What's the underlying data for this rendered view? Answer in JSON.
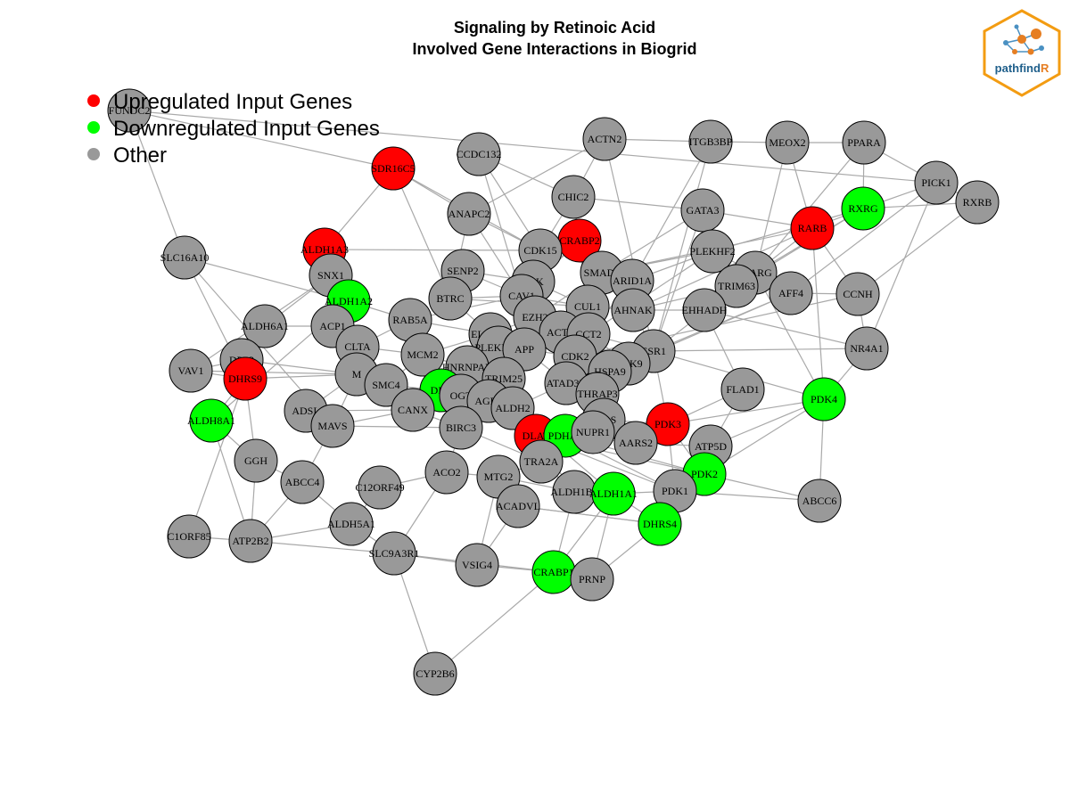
{
  "title": {
    "line1": "Signaling by Retinoic Acid",
    "line2": "Involved Gene Interactions in Biogrid"
  },
  "legend": [
    {
      "label": "Upregulated Input Genes",
      "color": "#ff0000"
    },
    {
      "label": "Downregulated Input Genes",
      "color": "#00ff00"
    },
    {
      "label": "Other",
      "color": "#999999"
    }
  ],
  "logo": {
    "text_main": "pathfind",
    "text_accent": "R",
    "border_color": "#f39c12",
    "accent_color": "#e67e22",
    "text_color": "#1f5f8b"
  },
  "colors": {
    "up": "#ff0000",
    "down": "#00ff00",
    "other": "#999999",
    "edge": "#a9a9a9"
  },
  "nodes": [
    {
      "id": "FUNDC2",
      "type": "other"
    },
    {
      "id": "SDR16C5",
      "type": "up"
    },
    {
      "id": "CCDC132",
      "type": "other"
    },
    {
      "id": "ACTN2",
      "type": "other"
    },
    {
      "id": "ITGB3BP",
      "type": "other"
    },
    {
      "id": "MEOX2",
      "type": "other"
    },
    {
      "id": "PPARA",
      "type": "other"
    },
    {
      "id": "PICK1",
      "type": "other"
    },
    {
      "id": "RXRB",
      "type": "other"
    },
    {
      "id": "RXRG",
      "type": "down"
    },
    {
      "id": "RARB",
      "type": "up"
    },
    {
      "id": "GATA3",
      "type": "other"
    },
    {
      "id": "CHIC2",
      "type": "other"
    },
    {
      "id": "ANAPC2",
      "type": "other"
    },
    {
      "id": "CRABP2",
      "type": "up"
    },
    {
      "id": "CDK15",
      "type": "other"
    },
    {
      "id": "ALDH1A3",
      "type": "up"
    },
    {
      "id": "SLC16A10",
      "type": "other"
    },
    {
      "id": "SNX1",
      "type": "other"
    },
    {
      "id": "SENP2",
      "type": "other"
    },
    {
      "id": "CSK",
      "type": "other"
    },
    {
      "id": "SMAD2",
      "type": "other"
    },
    {
      "id": "ARID1A",
      "type": "other"
    },
    {
      "id": "PLEKHF2",
      "type": "other"
    },
    {
      "id": "PPARG",
      "type": "other"
    },
    {
      "id": "TRIM63",
      "type": "other"
    },
    {
      "id": "AFF4",
      "type": "other"
    },
    {
      "id": "CCNH",
      "type": "other"
    },
    {
      "id": "ALDH1A2",
      "type": "down"
    },
    {
      "id": "BTRC",
      "type": "other"
    },
    {
      "id": "CAV1",
      "type": "other"
    },
    {
      "id": "CUL1",
      "type": "other"
    },
    {
      "id": "AHNAK",
      "type": "other"
    },
    {
      "id": "EHHADH",
      "type": "other"
    },
    {
      "id": "ALDH6A1",
      "type": "other"
    },
    {
      "id": "ACP1",
      "type": "other"
    },
    {
      "id": "RAB5A",
      "type": "other"
    },
    {
      "id": "EZH2",
      "type": "other"
    },
    {
      "id": "ELAVL1",
      "type": "other"
    },
    {
      "id": "ACTB",
      "type": "other"
    },
    {
      "id": "CCT2",
      "type": "other"
    },
    {
      "id": "NR4A1",
      "type": "other"
    },
    {
      "id": "CLTA",
      "type": "other"
    },
    {
      "id": "MCM2",
      "type": "other"
    },
    {
      "id": "PLEKHA4",
      "type": "other"
    },
    {
      "id": "APP",
      "type": "other"
    },
    {
      "id": "CDK2",
      "type": "other"
    },
    {
      "id": "ESR1",
      "type": "other"
    },
    {
      "id": "DPP3",
      "type": "other"
    },
    {
      "id": "VAV1",
      "type": "other"
    },
    {
      "id": "DHRS9",
      "type": "up"
    },
    {
      "id": "M",
      "type": "other"
    },
    {
      "id": "HNRNPAB",
      "type": "other"
    },
    {
      "id": "CDK9",
      "type": "other"
    },
    {
      "id": "HSPA9",
      "type": "other"
    },
    {
      "id": "SMC4",
      "type": "other"
    },
    {
      "id": "TRIM25",
      "type": "other"
    },
    {
      "id": "ATAD3B",
      "type": "other"
    },
    {
      "id": "FLAD1",
      "type": "other"
    },
    {
      "id": "PDK4",
      "type": "down"
    },
    {
      "id": "DLD",
      "type": "down"
    },
    {
      "id": "OGT",
      "type": "other"
    },
    {
      "id": "THRAP3",
      "type": "other"
    },
    {
      "id": "AGR3",
      "type": "other"
    },
    {
      "id": "ALDH2",
      "type": "other"
    },
    {
      "id": "ADSL",
      "type": "other"
    },
    {
      "id": "CANX",
      "type": "other"
    },
    {
      "id": "ALDH8A1",
      "type": "down"
    },
    {
      "id": "MAVS",
      "type": "other"
    },
    {
      "id": "EPRS",
      "type": "other"
    },
    {
      "id": "PDK3",
      "type": "up"
    },
    {
      "id": "BIRC3",
      "type": "other"
    },
    {
      "id": "DLAT",
      "type": "up"
    },
    {
      "id": "PDHA1",
      "type": "down"
    },
    {
      "id": "NUPR1",
      "type": "other"
    },
    {
      "id": "ATP5D",
      "type": "other"
    },
    {
      "id": "AARS2",
      "type": "other"
    },
    {
      "id": "GGH",
      "type": "other"
    },
    {
      "id": "TRA2A",
      "type": "other"
    },
    {
      "id": "PDK2",
      "type": "down"
    },
    {
      "id": "ACO2",
      "type": "other"
    },
    {
      "id": "ABCC4",
      "type": "other"
    },
    {
      "id": "MTG2",
      "type": "other"
    },
    {
      "id": "C12ORF49",
      "type": "other"
    },
    {
      "id": "ALDH1B1",
      "type": "other"
    },
    {
      "id": "ALDH1A1",
      "type": "down"
    },
    {
      "id": "PDK1",
      "type": "other"
    },
    {
      "id": "ABCC6",
      "type": "other"
    },
    {
      "id": "ACADVL",
      "type": "other"
    },
    {
      "id": "DHRS4",
      "type": "down"
    },
    {
      "id": "ALDH5A1",
      "type": "other"
    },
    {
      "id": "C1ORF85",
      "type": "other"
    },
    {
      "id": "ATP2B2",
      "type": "other"
    },
    {
      "id": "SLC9A3R1",
      "type": "other"
    },
    {
      "id": "VSIG4",
      "type": "other"
    },
    {
      "id": "CRABP1",
      "type": "down"
    },
    {
      "id": "PRNP",
      "type": "other"
    },
    {
      "id": "CYP2B6",
      "type": "other"
    }
  ],
  "edges": [
    [
      "FUNDC2",
      "SLC16A10"
    ],
    [
      "FUNDC2",
      "SDR16C5"
    ],
    [
      "FUNDC2",
      "PICK1"
    ],
    [
      "SDR16C5",
      "ALDH1A3"
    ],
    [
      "SDR16C5",
      "BTRC"
    ],
    [
      "SDR16C5",
      "CDK15"
    ],
    [
      "SDR16C5",
      "ANAPC2"
    ],
    [
      "CCDC132",
      "CHIC2"
    ],
    [
      "CCDC132",
      "CDK15"
    ],
    [
      "CCDC132",
      "CAV1"
    ],
    [
      "ACTN2",
      "ITGB3BP"
    ],
    [
      "ACTN2",
      "ESR1"
    ],
    [
      "ACTN2",
      "CHIC2"
    ],
    [
      "ACTN2",
      "ANAPC2"
    ],
    [
      "ITGB3BP",
      "MEOX2"
    ],
    [
      "ITGB3BP",
      "ARID1A"
    ],
    [
      "ITGB3BP",
      "ESR1"
    ],
    [
      "MEOX2",
      "PPARA"
    ],
    [
      "MEOX2",
      "RARB"
    ],
    [
      "MEOX2",
      "PPARG"
    ],
    [
      "PPARA",
      "PICK1"
    ],
    [
      "PPARA",
      "RXRG"
    ],
    [
      "PPARA",
      "PPARG"
    ],
    [
      "PICK1",
      "RXRB"
    ],
    [
      "PICK1",
      "RXRG"
    ],
    [
      "PICK1",
      "AFF4"
    ],
    [
      "PICK1",
      "NR4A1"
    ],
    [
      "RXRB",
      "RXRG"
    ],
    [
      "RXRB",
      "CCNH"
    ],
    [
      "RXRG",
      "RARB"
    ],
    [
      "RXRG",
      "PLEKHF2"
    ],
    [
      "RXRG",
      "PPARG"
    ],
    [
      "RXRG",
      "TRIM63"
    ],
    [
      "RARB",
      "GATA3"
    ],
    [
      "RARB",
      "CCNH"
    ],
    [
      "RARB",
      "PPARG"
    ],
    [
      "RARB",
      "SMAD2"
    ],
    [
      "RARB",
      "AHNAK"
    ],
    [
      "RARB",
      "PDK4"
    ],
    [
      "GATA3",
      "ESR1"
    ],
    [
      "GATA3",
      "SMAD2"
    ],
    [
      "GATA3",
      "CHIC2"
    ],
    [
      "CHIC2",
      "CDK15"
    ],
    [
      "CHIC2",
      "CUL1"
    ],
    [
      "ANAPC2",
      "BTRC"
    ],
    [
      "ANAPC2",
      "CDK15"
    ],
    [
      "ANAPC2",
      "CAV1"
    ],
    [
      "CRABP2",
      "CDK15"
    ],
    [
      "CRABP2",
      "CSK"
    ],
    [
      "CRABP2",
      "CUL1"
    ],
    [
      "CRABP2",
      "SMAD2"
    ],
    [
      "CRABP2",
      "CAV1"
    ],
    [
      "CDK15",
      "CAV1"
    ],
    [
      "CDK15",
      "CSK"
    ],
    [
      "ALDH1A3",
      "SNX1"
    ],
    [
      "ALDH1A3",
      "ALDH1A2"
    ],
    [
      "ALDH1A3",
      "CDK15"
    ],
    [
      "SLC16A10",
      "ALDH1A2"
    ],
    [
      "SLC16A10",
      "DHRS9"
    ],
    [
      "SLC16A10",
      "MAVS"
    ],
    [
      "SNX1",
      "ALDH6A1"
    ],
    [
      "SNX1",
      "ALDH1A2"
    ],
    [
      "SNX1",
      "VAV1"
    ],
    [
      "SENP2",
      "CSK"
    ],
    [
      "SENP2",
      "CAV1"
    ],
    [
      "SENP2",
      "BTRC"
    ],
    [
      "CSK",
      "CAV1"
    ],
    [
      "CSK",
      "EZH2"
    ],
    [
      "CSK",
      "CUL1"
    ],
    [
      "SMAD2",
      "ARID1A"
    ],
    [
      "SMAD2",
      "CUL1"
    ],
    [
      "SMAD2",
      "EZH2"
    ],
    [
      "SMAD2",
      "PLEKHF2"
    ],
    [
      "ARID1A",
      "AHNAK"
    ],
    [
      "ARID1A",
      "CCT2"
    ],
    [
      "ARID1A",
      "PLEKHF2"
    ],
    [
      "PLEKHF2",
      "PPARG"
    ],
    [
      "PLEKHF2",
      "TRIM63"
    ],
    [
      "PLEKHF2",
      "CCT2"
    ],
    [
      "PPARG",
      "TRIM63"
    ],
    [
      "PPARG",
      "EHHADH"
    ],
    [
      "PPARG",
      "ESR1"
    ],
    [
      "PPARG",
      "PDK4"
    ],
    [
      "TRIM63",
      "AHNAK"
    ],
    [
      "TRIM63",
      "EHHADH"
    ],
    [
      "AFF4",
      "CCNH"
    ],
    [
      "AFF4",
      "ESR1"
    ],
    [
      "AFF4",
      "CDK9"
    ],
    [
      "CCNH",
      "NR4A1"
    ],
    [
      "CCNH",
      "CDK2"
    ],
    [
      "ALDH1A2",
      "ACP1"
    ],
    [
      "ALDH1A2",
      "RAB5A"
    ],
    [
      "ALDH1A2",
      "CLTA"
    ],
    [
      "BTRC",
      "CAV1"
    ],
    [
      "BTRC",
      "CUL1"
    ],
    [
      "BTRC",
      "ELAVL1"
    ],
    [
      "CAV1",
      "CUL1"
    ],
    [
      "CAV1",
      "EZH2"
    ],
    [
      "CAV1",
      "APP"
    ],
    [
      "CAV1",
      "RAB5A"
    ],
    [
      "CUL1",
      "AHNAK"
    ],
    [
      "CUL1",
      "CCT2"
    ],
    [
      "CUL1",
      "APP"
    ],
    [
      "CUL1",
      "CDK2"
    ],
    [
      "AHNAK",
      "EHHADH"
    ],
    [
      "AHNAK",
      "ESR1"
    ],
    [
      "EHHADH",
      "FLAD1"
    ],
    [
      "EHHADH",
      "NR4A1"
    ],
    [
      "ALDH6A1",
      "ACP1"
    ],
    [
      "ALDH6A1",
      "DPP3"
    ],
    [
      "ACP1",
      "CLTA"
    ],
    [
      "ACP1",
      "M"
    ],
    [
      "RAB5A",
      "CLTA"
    ],
    [
      "RAB5A",
      "MCM2"
    ],
    [
      "RAB5A",
      "ELAVL1"
    ],
    [
      "EZH2",
      "ACTB"
    ],
    [
      "EZH2",
      "ELAVL1"
    ],
    [
      "EZH2",
      "CDK2"
    ],
    [
      "ELAVL1",
      "PLEKHA4"
    ],
    [
      "ELAVL1",
      "APP"
    ],
    [
      "ELAVL1",
      "MCM2"
    ],
    [
      "ELAVL1",
      "HNRNPAB"
    ],
    [
      "ACTB",
      "CCT2"
    ],
    [
      "ACTB",
      "APP"
    ],
    [
      "ACTB",
      "CDK2"
    ],
    [
      "ACTB",
      "HSPA9"
    ],
    [
      "CCT2",
      "CDK9"
    ],
    [
      "CCT2",
      "ESR1"
    ],
    [
      "NR4A1",
      "ESR1"
    ],
    [
      "NR4A1",
      "PDK4"
    ],
    [
      "CLTA",
      "MCM2"
    ],
    [
      "CLTA",
      "M"
    ],
    [
      "CLTA",
      "SMC4"
    ],
    [
      "MCM2",
      "HNRNPAB"
    ],
    [
      "MCM2",
      "SMC4"
    ],
    [
      "PLEKHA4",
      "APP"
    ],
    [
      "PLEKHA4",
      "TRIM25"
    ],
    [
      "APP",
      "CDK2"
    ],
    [
      "APP",
      "TRIM25"
    ],
    [
      "APP",
      "ATAD3B"
    ],
    [
      "CDK2",
      "CDK9"
    ],
    [
      "CDK2",
      "HSPA9"
    ],
    [
      "CDK2",
      "ATAD3B"
    ],
    [
      "ESR1",
      "CDK9"
    ],
    [
      "ESR1",
      "PDK3"
    ],
    [
      "ESR1",
      "PDK4"
    ],
    [
      "DPP3",
      "VAV1"
    ],
    [
      "DPP3",
      "DHRS9"
    ],
    [
      "DPP3",
      "M"
    ],
    [
      "VAV1",
      "DHRS9"
    ],
    [
      "VAV1",
      "M"
    ],
    [
      "DHRS9",
      "ALDH8A1"
    ],
    [
      "DHRS9",
      "M"
    ],
    [
      "DHRS9",
      "GGH"
    ],
    [
      "M",
      "SMC4"
    ],
    [
      "M",
      "ADSL"
    ],
    [
      "M",
      "MAVS"
    ],
    [
      "HNRNPAB",
      "TRIM25"
    ],
    [
      "HNRNPAB",
      "DLD"
    ],
    [
      "HNRNPAB",
      "OGT"
    ],
    [
      "CDK9",
      "HSPA9"
    ],
    [
      "CDK9",
      "THRAP3"
    ],
    [
      "HSPA9",
      "ATAD3B"
    ],
    [
      "HSPA9",
      "THRAP3"
    ],
    [
      "HSPA9",
      "EPRS"
    ],
    [
      "SMC4",
      "DLD"
    ],
    [
      "SMC4",
      "CANX"
    ],
    [
      "TRIM25",
      "OGT"
    ],
    [
      "TRIM25",
      "AGR3"
    ],
    [
      "TRIM25",
      "ALDH2"
    ],
    [
      "ATAD3B",
      "THRAP3"
    ],
    [
      "ATAD3B",
      "ALDH2"
    ],
    [
      "FLAD1",
      "PDK3"
    ],
    [
      "FLAD1",
      "ATP5D"
    ],
    [
      "PDK4",
      "PDK3"
    ],
    [
      "PDK4",
      "PDK2"
    ],
    [
      "PDK4",
      "ATP5D"
    ],
    [
      "PDK4",
      "ABCC6"
    ],
    [
      "DLD",
      "OGT"
    ],
    [
      "DLD",
      "DLAT"
    ],
    [
      "DLD",
      "PDHA1"
    ],
    [
      "DLD",
      "CANX"
    ],
    [
      "OGT",
      "AGR3"
    ],
    [
      "OGT",
      "BIRC3"
    ],
    [
      "THRAP3",
      "EPRS"
    ],
    [
      "THRAP3",
      "NUPR1"
    ],
    [
      "AGR3",
      "ALDH2"
    ],
    [
      "ALDH2",
      "DLAT"
    ],
    [
      "ALDH2",
      "ALDH1A1"
    ],
    [
      "ALDH2",
      "ALDH1B1"
    ],
    [
      "ADSL",
      "MAVS"
    ],
    [
      "ADSL",
      "CANX"
    ],
    [
      "CANX",
      "BIRC3"
    ],
    [
      "CANX",
      "MAVS"
    ],
    [
      "ALDH8A1",
      "GGH"
    ],
    [
      "ALDH8A1",
      "ATP2B2"
    ],
    [
      "ALDH8A1",
      "ALDH1A2"
    ],
    [
      "MAVS",
      "BIRC3"
    ],
    [
      "MAVS",
      "ABCC4"
    ],
    [
      "EPRS",
      "PDK3"
    ],
    [
      "EPRS",
      "NUPR1"
    ],
    [
      "PDK3",
      "PDK2"
    ],
    [
      "PDK3",
      "PDK1"
    ],
    [
      "PDK3",
      "DLAT"
    ],
    [
      "PDK3",
      "PDHA1"
    ],
    [
      "BIRC3",
      "TRA2A"
    ],
    [
      "BIRC3",
      "ACO2"
    ],
    [
      "DLAT",
      "PDHA1"
    ],
    [
      "DLAT",
      "TRA2A"
    ],
    [
      "DLAT",
      "PDK2"
    ],
    [
      "DLAT",
      "PDK1"
    ],
    [
      "PDHA1",
      "NUPR1"
    ],
    [
      "PDHA1",
      "PDK2"
    ],
    [
      "PDHA1",
      "PDK1"
    ],
    [
      "PDHA1",
      "AARS2"
    ],
    [
      "NUPR1",
      "AARS2"
    ],
    [
      "ATP5D",
      "PDK2"
    ],
    [
      "ATP5D",
      "AARS2"
    ],
    [
      "GGH",
      "ATP2B2"
    ],
    [
      "GGH",
      "ABCC4"
    ],
    [
      "TRA2A",
      "MTG2"
    ],
    [
      "TRA2A",
      "ALDH1B1"
    ],
    [
      "PDK2",
      "PDK1"
    ],
    [
      "PDK2",
      "DHRS4"
    ],
    [
      "PDK2",
      "ABCC6"
    ],
    [
      "ACO2",
      "MTG2"
    ],
    [
      "ACO2",
      "C12ORF49"
    ],
    [
      "ACO2",
      "SLC9A3R1"
    ],
    [
      "ABCC4",
      "ALDH5A1"
    ],
    [
      "ABCC4",
      "ATP2B2"
    ],
    [
      "MTG2",
      "ACADVL"
    ],
    [
      "MTG2",
      "ALDH1B1"
    ],
    [
      "ALDH1B1",
      "ALDH1A1"
    ],
    [
      "ALDH1B1",
      "CRABP1"
    ],
    [
      "ALDH1A1",
      "PDK1"
    ],
    [
      "ALDH1A1",
      "DHRS4"
    ],
    [
      "ALDH1A1",
      "PRNP"
    ],
    [
      "ALDH1A1",
      "CRABP1"
    ],
    [
      "PDK1",
      "DHRS4"
    ],
    [
      "PDK1",
      "ABCC6"
    ],
    [
      "ACADVL",
      "VSIG4"
    ],
    [
      "ACADVL",
      "DHRS4"
    ],
    [
      "DHRS4",
      "PRNP"
    ],
    [
      "DHRS4",
      "ACADVL"
    ],
    [
      "ALDH5A1",
      "ATP2B2"
    ],
    [
      "ALDH5A1",
      "SLC9A3R1"
    ],
    [
      "ALDH5A1",
      "C12ORF49"
    ],
    [
      "C1ORF85",
      "ATP2B2"
    ],
    [
      "C1ORF85",
      "DHRS9"
    ],
    [
      "ATP2B2",
      "SLC9A3R1"
    ],
    [
      "SLC9A3R1",
      "VSIG4"
    ],
    [
      "SLC9A3R1",
      "CRABP1"
    ],
    [
      "VSIG4",
      "CRABP1"
    ],
    [
      "VSIG4",
      "MTG2"
    ],
    [
      "CRABP1",
      "PRNP"
    ],
    [
      "CRABP1",
      "CYP2B6"
    ],
    [
      "CYP2B6",
      "SLC9A3R1"
    ]
  ]
}
